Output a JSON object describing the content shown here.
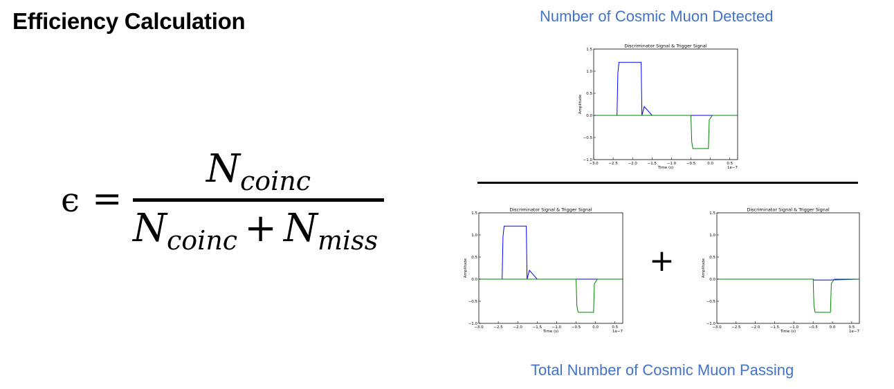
{
  "heading": "Efficiency Calculation",
  "formula": {
    "lhs": "ϵ",
    "equals": "=",
    "num_base": "N",
    "num_sub": "coinc",
    "den_base1": "N",
    "den_sub1": "coinc",
    "den_plus": "+",
    "den_base2": "N",
    "den_sub2": "miss"
  },
  "captions": {
    "top": "Number of Cosmic Muon Detected",
    "bottom": "Total Number of Cosmic Muon Passing",
    "color": "#4472C4"
  },
  "plus_sign": "+",
  "chart_data": [
    {
      "type": "line",
      "title": "Discriminator Signal & Trigger Signal",
      "xlabel": "Time (s)",
      "ylabel": "Amplitude",
      "x_offset_label": "1e−7",
      "xlim": [
        -3.0,
        0.7
      ],
      "ylim": [
        -1.0,
        1.5
      ],
      "xticks": [
        "−3.0",
        "−2.5",
        "−2.0",
        "−1.5",
        "−1.0",
        "−0.5",
        "0.0",
        "0.5"
      ],
      "yticks": [
        "1.5",
        "1.0",
        "0.5",
        "0.0",
        "−0.5",
        "−1.0"
      ],
      "series": [
        {
          "color": "#0000ff",
          "x": [
            -3.0,
            -2.4,
            -2.38,
            -2.35,
            -1.78,
            -1.76,
            -1.7,
            -1.5,
            0.7
          ],
          "y": [
            0.0,
            0.0,
            0.95,
            1.2,
            1.2,
            0.0,
            0.2,
            0.0,
            0.0
          ]
        },
        {
          "color": "#008000",
          "x": [
            -3.0,
            -0.5,
            -0.48,
            -0.45,
            -0.05,
            -0.03,
            0.05,
            0.7
          ],
          "y": [
            0.0,
            0.0,
            -0.6,
            -0.75,
            -0.75,
            -0.1,
            0.0,
            0.0
          ]
        }
      ]
    },
    {
      "type": "line",
      "title": "Discriminator Signal & Trigger Signal",
      "xlabel": "Time (s)",
      "ylabel": "Amplitude",
      "x_offset_label": "1e−7",
      "xlim": [
        -3.0,
        0.7
      ],
      "ylim": [
        -1.0,
        1.5
      ],
      "xticks": [
        "−3.0",
        "−2.5",
        "−2.0",
        "−1.5",
        "−1.0",
        "−0.5",
        "0.0",
        "0.5"
      ],
      "yticks": [
        "1.5",
        "1.0",
        "0.5",
        "0.0",
        "−0.5",
        "−1.0"
      ],
      "series": [
        {
          "color": "#0000ff",
          "x": [
            -3.0,
            -2.4,
            -2.38,
            -2.35,
            -1.78,
            -1.76,
            -1.7,
            -1.5,
            0.7
          ],
          "y": [
            0.0,
            0.0,
            0.95,
            1.2,
            1.2,
            0.0,
            0.2,
            0.0,
            0.0
          ]
        },
        {
          "color": "#008000",
          "x": [
            -3.0,
            -0.5,
            -0.48,
            -0.45,
            -0.05,
            -0.03,
            0.05,
            0.7
          ],
          "y": [
            0.0,
            0.0,
            -0.6,
            -0.75,
            -0.75,
            -0.1,
            0.0,
            0.0
          ]
        }
      ]
    },
    {
      "type": "line",
      "title": "Discriminator Signal & Trigger Signal",
      "xlabel": "Time (s)",
      "ylabel": "Amplitude",
      "x_offset_label": "1e−7",
      "xlim": [
        -3.0,
        0.7
      ],
      "ylim": [
        -1.0,
        1.5
      ],
      "xticks": [
        "−3.0",
        "−2.5",
        "−2.0",
        "−1.5",
        "−1.0",
        "−0.5",
        "0.0",
        "0.5"
      ],
      "yticks": [
        "1.5",
        "1.0",
        "0.5",
        "0.0",
        "−0.5",
        "−1.0"
      ],
      "series": [
        {
          "color": "#0000ff",
          "x": [
            -3.0,
            -0.5,
            -0.48,
            -0.1,
            0.7
          ],
          "y": [
            0.0,
            0.0,
            -0.02,
            -0.02,
            0.0
          ]
        },
        {
          "color": "#008000",
          "x": [
            -3.0,
            -0.5,
            -0.48,
            -0.45,
            -0.05,
            -0.03,
            0.05,
            0.7
          ],
          "y": [
            0.0,
            0.0,
            -0.6,
            -0.75,
            -0.75,
            -0.1,
            0.0,
            0.0
          ]
        }
      ]
    }
  ]
}
